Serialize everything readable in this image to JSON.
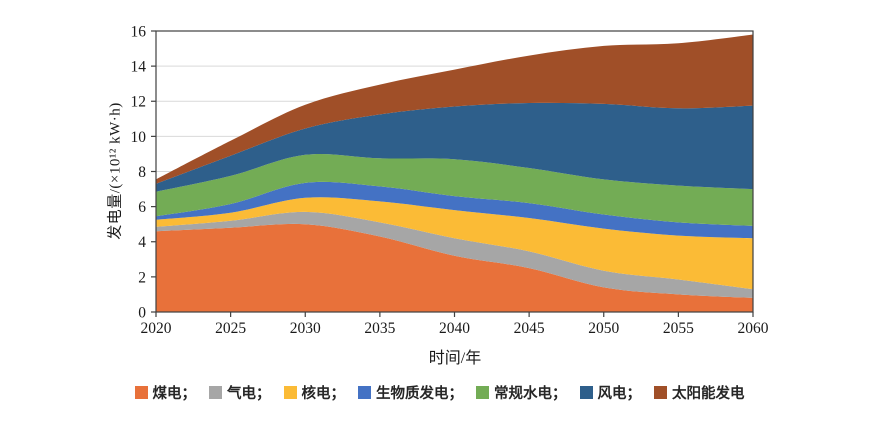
{
  "figure": {
    "background": "#ffffff"
  },
  "chart_data": {
    "type": "area",
    "stacked": true,
    "title": "",
    "xlabel": "时间/年",
    "ylabel": "发电量/(×10¹² kW·h)",
    "x": [
      2020,
      2025,
      2030,
      2035,
      2040,
      2045,
      2050,
      2055,
      2060
    ],
    "xlim": [
      2020,
      2060
    ],
    "ylim": [
      0,
      16
    ],
    "ytick_step": 2,
    "grid": "horizontal",
    "grid_color": "#d9d9d9",
    "axis_color": "#404040",
    "legend_position": "bottom",
    "series": [
      {
        "key": "coal",
        "name": "煤电",
        "legend_label": "煤电；",
        "color": "#E8713A",
        "values": [
          4.6,
          4.8,
          5.0,
          4.3,
          3.2,
          2.5,
          1.4,
          1.0,
          0.8
        ]
      },
      {
        "key": "gas",
        "name": "气电",
        "legend_label": "气电；",
        "color": "#A6A6A6",
        "values": [
          0.25,
          0.4,
          0.7,
          0.8,
          1.0,
          0.95,
          0.95,
          0.85,
          0.5
        ]
      },
      {
        "key": "nuclear",
        "name": "核电",
        "legend_label": "核电；",
        "color": "#FBBB36",
        "values": [
          0.4,
          0.45,
          0.8,
          1.2,
          1.6,
          1.9,
          2.4,
          2.5,
          2.9
        ]
      },
      {
        "key": "biomass",
        "name": "生物质发电",
        "legend_label": "生物质发电；",
        "color": "#4472C4",
        "values": [
          0.2,
          0.5,
          0.85,
          0.85,
          0.8,
          0.85,
          0.8,
          0.75,
          0.7
        ]
      },
      {
        "key": "hydro",
        "name": "常规水电",
        "legend_label": "常规水电；",
        "color": "#73AC55",
        "values": [
          1.4,
          1.6,
          1.6,
          1.6,
          2.1,
          2.0,
          2.0,
          2.1,
          2.1
        ]
      },
      {
        "key": "wind",
        "name": "风电",
        "legend_label": "风电；",
        "color": "#2E5F8B",
        "values": [
          0.45,
          1.15,
          1.5,
          2.5,
          3.0,
          3.7,
          4.3,
          4.4,
          4.75
        ]
      },
      {
        "key": "solar",
        "name": "太阳能发电",
        "legend_label": "太阳能发电",
        "color": "#A04F28",
        "values": [
          0.25,
          0.85,
          1.35,
          1.7,
          2.1,
          2.7,
          3.3,
          3.7,
          4.05
        ]
      }
    ]
  }
}
